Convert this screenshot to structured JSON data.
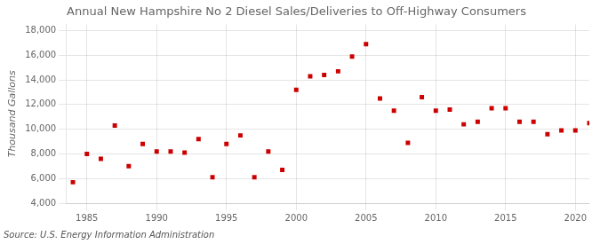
{
  "chart_data": {
    "type": "scatter",
    "title": "Annual New Hampshire No 2 Diesel Sales/Deliveries to Off-Highway Consumers",
    "ylabel": "Thousand Gallons",
    "annotations": [
      "Source: U.S. Energy Information Administration"
    ],
    "x": [
      1984,
      1985,
      1986,
      1987,
      1988,
      1989,
      1990,
      1991,
      1992,
      1993,
      1994,
      1995,
      1996,
      1997,
      1998,
      1999,
      2000,
      2001,
      2002,
      2003,
      2004,
      2005,
      2006,
      2007,
      2008,
      2009,
      2010,
      2011,
      2012,
      2013,
      2014,
      2015,
      2016,
      2017,
      2018,
      2019,
      2020,
      2021
    ],
    "values": [
      5700,
      8000,
      7600,
      10300,
      7000,
      8800,
      8200,
      8200,
      8100,
      9200,
      6100,
      8800,
      9500,
      6100,
      8200,
      6700,
      13200,
      14300,
      14400,
      14700,
      15900,
      16900,
      12500,
      11500,
      8900,
      12600,
      11500,
      11600,
      10400,
      10600,
      11700,
      11700,
      10600,
      10600,
      9600,
      9900,
      9900,
      10500
    ],
    "color": "#cc0000",
    "marker": "square",
    "xlim": [
      1983.5,
      2021
    ],
    "xticks": [
      1985,
      1990,
      1995,
      2000,
      2005,
      2010,
      2015,
      2020
    ],
    "ylim": [
      4000,
      18500
    ],
    "yticks": [
      {
        "value": 4000,
        "label": "4,000"
      },
      {
        "value": 6000,
        "label": "6,000"
      },
      {
        "value": 8000,
        "label": "8,000"
      },
      {
        "value": 10000,
        "label": "10,000"
      },
      {
        "value": 12000,
        "label": "12,000"
      },
      {
        "value": 14000,
        "label": "14,000"
      },
      {
        "value": 16000,
        "label": "16,000"
      },
      {
        "value": 18000,
        "label": "18,000"
      }
    ],
    "grid": true
  }
}
